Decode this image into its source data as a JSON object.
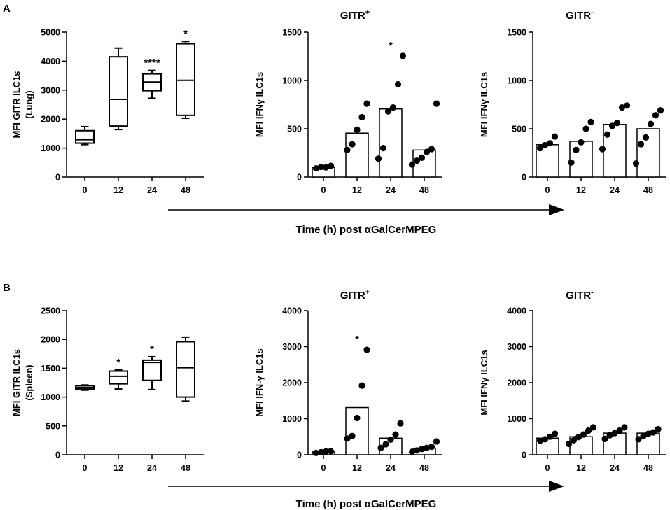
{
  "colors": {
    "ink": "#000000",
    "fill": "#ffffff"
  },
  "panel_labels": [
    "A",
    "B"
  ],
  "time_axis_label": "Time (h) post αGalCerMPEG",
  "chart_data": [
    {
      "id": "A1",
      "type": "box",
      "title": "",
      "ylabel_lines": [
        "MFI GITR ILC1s",
        "(Lung)"
      ],
      "categories": [
        "0",
        "12",
        "24",
        "48"
      ],
      "ylim": [
        0,
        5000
      ],
      "yticks": [
        0,
        1000,
        2000,
        3000,
        4000,
        5000
      ],
      "boxes": [
        {
          "min": 1120,
          "q1": 1170,
          "median": 1290,
          "q3": 1600,
          "max": 1740
        },
        {
          "min": 1640,
          "q1": 1760,
          "median": 2680,
          "q3": 4150,
          "max": 4450
        },
        {
          "min": 2720,
          "q1": 2980,
          "median": 3280,
          "q3": 3560,
          "max": 3680
        },
        {
          "min": 2030,
          "q1": 2130,
          "median": 3340,
          "q3": 4600,
          "max": 4680
        }
      ],
      "annotations": [
        "",
        "",
        "****",
        "*"
      ]
    },
    {
      "id": "A2",
      "type": "bar",
      "title": "GITR",
      "title_sup": "+",
      "ylabel": "MFI IFNγ ILC1s",
      "categories": [
        "0",
        "12",
        "24",
        "48"
      ],
      "ylim": [
        0,
        1500
      ],
      "yticks": [
        0,
        500,
        1000,
        1500
      ],
      "values": [
        100,
        455,
        705,
        280
      ],
      "points": [
        [
          90,
          105,
          100,
          115
        ],
        [
          280,
          340,
          490,
          620,
          760
        ],
        [
          190,
          300,
          680,
          720,
          960,
          1255
        ],
        [
          130,
          170,
          200,
          260,
          290,
          760
        ]
      ],
      "annotations": [
        "",
        "",
        "*",
        ""
      ]
    },
    {
      "id": "A3",
      "type": "bar",
      "title": "GITR",
      "title_sup": "-",
      "ylabel": "MFI IFNγ ILC1s",
      "categories": [
        "0",
        "12",
        "24",
        "48"
      ],
      "ylim": [
        0,
        1500
      ],
      "yticks": [
        0,
        500,
        1000,
        1500
      ],
      "values": [
        335,
        370,
        545,
        500
      ],
      "points": [
        [
          300,
          330,
          350,
          420
        ],
        [
          150,
          280,
          360,
          500,
          570
        ],
        [
          290,
          440,
          530,
          560,
          720,
          740
        ],
        [
          140,
          340,
          410,
          550,
          640,
          690
        ]
      ],
      "annotations": [
        "",
        "",
        "",
        ""
      ]
    },
    {
      "id": "B1",
      "type": "box",
      "title": "",
      "ylabel_lines": [
        "MFI GITR ILC1s",
        "(Spleen)"
      ],
      "categories": [
        "0",
        "12",
        "24",
        "48"
      ],
      "ylim": [
        0,
        2500
      ],
      "yticks": [
        0,
        500,
        1000,
        1500,
        2000,
        2500
      ],
      "boxes": [
        {
          "min": 1120,
          "q1": 1140,
          "median": 1170,
          "q3": 1200,
          "max": 1210
        },
        {
          "min": 1140,
          "q1": 1230,
          "median": 1360,
          "q3": 1450,
          "max": 1470
        },
        {
          "min": 1130,
          "q1": 1290,
          "median": 1600,
          "q3": 1640,
          "max": 1700
        },
        {
          "min": 930,
          "q1": 1000,
          "median": 1510,
          "q3": 1960,
          "max": 2040
        }
      ],
      "annotations": [
        "",
        "*",
        "*",
        ""
      ]
    },
    {
      "id": "B2",
      "type": "bar",
      "title": "GITR",
      "title_sup": "+",
      "ylabel": "MFI IFN-γ ILC1s",
      "categories": [
        "0",
        "12",
        "24",
        "48"
      ],
      "ylim": [
        0,
        4000
      ],
      "yticks": [
        0,
        1000,
        2000,
        3000,
        4000
      ],
      "values": [
        80,
        1310,
        460,
        180
      ],
      "points": [
        [
          50,
          70,
          90,
          100
        ],
        [
          450,
          520,
          1020,
          1920,
          2910
        ],
        [
          190,
          290,
          420,
          560,
          870
        ],
        [
          80,
          120,
          160,
          190,
          220,
          370
        ]
      ],
      "annotations": [
        "",
        "*",
        "",
        ""
      ]
    },
    {
      "id": "B3",
      "type": "bar",
      "title": "GITR",
      "title_sup": "-",
      "ylabel": "MFI IFNγ ILC1s",
      "categories": [
        "0",
        "12",
        "24",
        "48"
      ],
      "ylim": [
        0,
        4000
      ],
      "yticks": [
        0,
        1000,
        2000,
        3000,
        4000
      ],
      "values": [
        460,
        500,
        600,
        600
      ],
      "points": [
        [
          390,
          430,
          500,
          580
        ],
        [
          300,
          400,
          490,
          560,
          670,
          760
        ],
        [
          440,
          540,
          600,
          670,
          760
        ],
        [
          430,
          520,
          580,
          620,
          710
        ]
      ],
      "annotations": [
        "",
        "",
        "",
        ""
      ]
    }
  ]
}
